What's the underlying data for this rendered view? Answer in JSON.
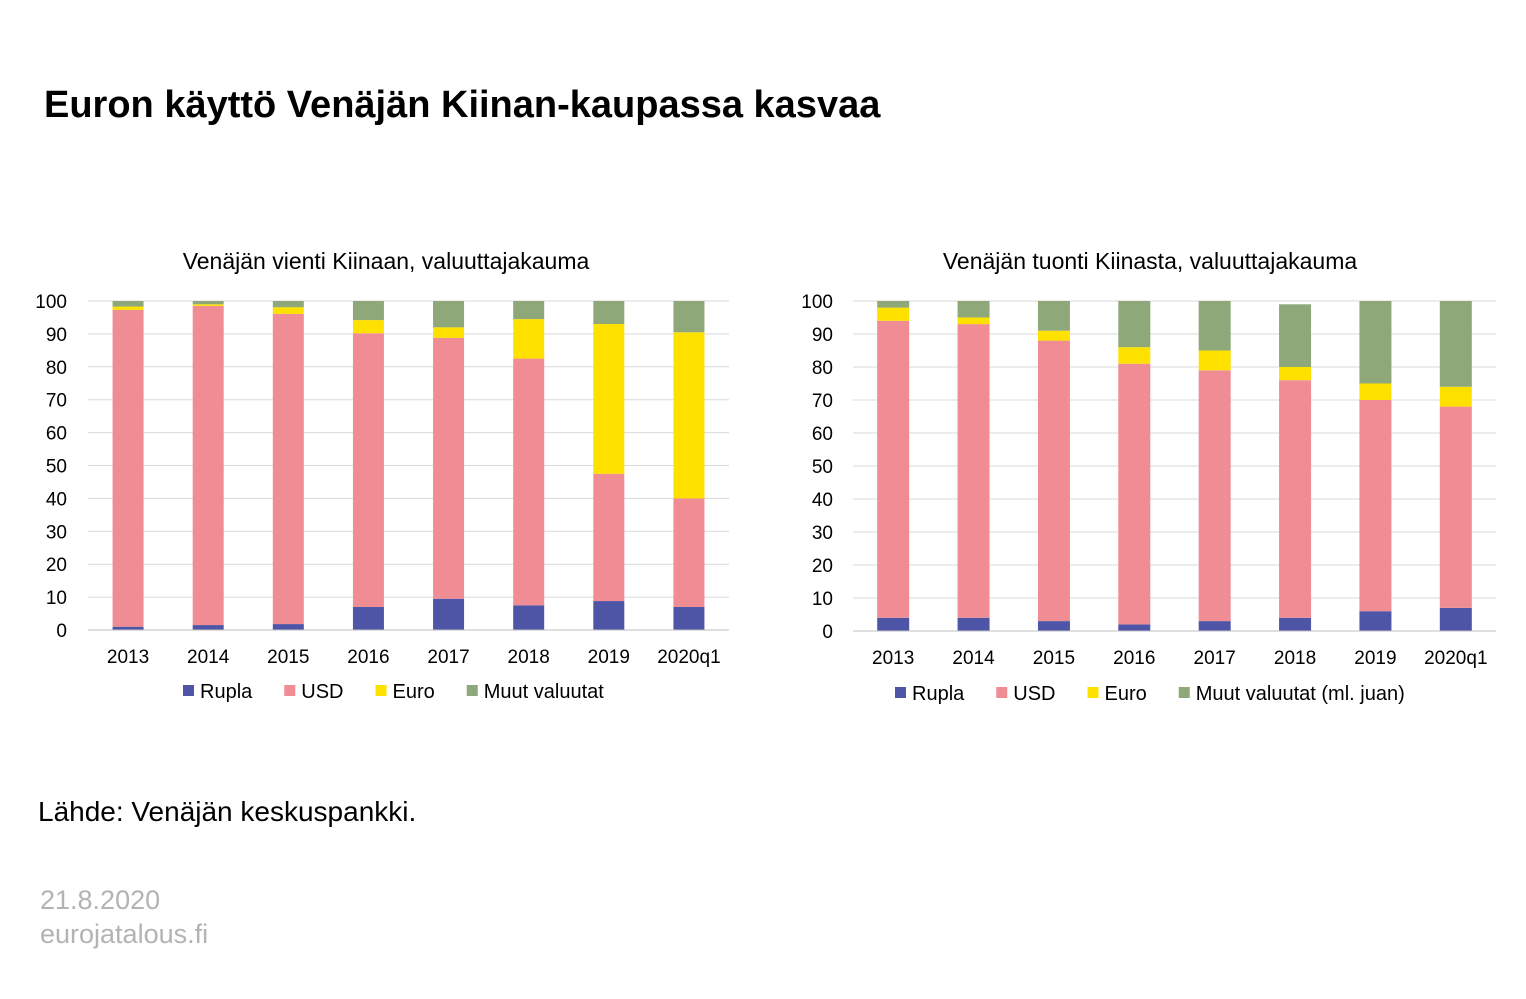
{
  "title": "Euron käyttö Venäjän Kiinan-kaupassa kasvaa",
  "colors": {
    "rupla": "#4e54a6",
    "usd": "#f08c94",
    "euro": "#ffe100",
    "muut": "#8fa87a",
    "grid": "#d9d9d9",
    "axis": "#bfbfbf"
  },
  "chart_data": [
    {
      "type": "bar",
      "stacked": true,
      "title": "Venäjän vienti Kiinaan, valuuttajakauma",
      "categories": [
        "2013",
        "2014",
        "2015",
        "2016",
        "2017",
        "2018",
        "2019",
        "2020q1"
      ],
      "ylim": [
        0,
        100
      ],
      "yticks": [
        "0",
        "10",
        "20",
        "30",
        "40",
        "50",
        "60",
        "70",
        "80",
        "90",
        "100"
      ],
      "grid": true,
      "legend_position": "bottom",
      "series": [
        {
          "name": "Rupla",
          "color": "#4e54a6",
          "values": [
            1,
            1.5,
            1.8,
            7,
            9.5,
            7.5,
            8.8,
            7
          ]
        },
        {
          "name": "USD",
          "color": "#f08c94",
          "values": [
            96.3,
            97,
            94.3,
            83.2,
            79.3,
            75,
            38.7,
            33
          ]
        },
        {
          "name": "Euro",
          "color": "#ffe100",
          "values": [
            1,
            0.5,
            2,
            4,
            3.2,
            12,
            45.5,
            50.5
          ]
        },
        {
          "name": "Muut valuutat",
          "color": "#8fa87a",
          "values": [
            1.7,
            1,
            1.9,
            5.8,
            8,
            5.5,
            7,
            9.5
          ]
        }
      ]
    },
    {
      "type": "bar",
      "stacked": true,
      "title": "Venäjän tuonti Kiinasta, valuuttajakauma",
      "categories": [
        "2013",
        "2014",
        "2015",
        "2016",
        "2017",
        "2018",
        "2019",
        "2020q1"
      ],
      "ylim": [
        0,
        100
      ],
      "yticks": [
        "0",
        "10",
        "20",
        "30",
        "40",
        "50",
        "60",
        "70",
        "80",
        "90",
        "100"
      ],
      "grid": true,
      "legend_position": "bottom",
      "series": [
        {
          "name": "Rupla",
          "color": "#4e54a6",
          "values": [
            4,
            4,
            3,
            2,
            3,
            4,
            6,
            7
          ]
        },
        {
          "name": "USD",
          "color": "#f08c94",
          "values": [
            90,
            89,
            85,
            79,
            76,
            72,
            64,
            61
          ]
        },
        {
          "name": "Euro",
          "color": "#ffe100",
          "values": [
            4,
            2,
            3,
            5,
            6,
            4,
            5,
            6
          ]
        },
        {
          "name": "Muut valuutat (ml. juan)",
          "color": "#8fa87a",
          "values": [
            2,
            5,
            9,
            14,
            15,
            19,
            25,
            26
          ]
        }
      ]
    }
  ],
  "source": "Lähde: Venäjän keskuspankki.",
  "footer": {
    "date": "21.8.2020",
    "site": "eurojatalous.fi"
  }
}
